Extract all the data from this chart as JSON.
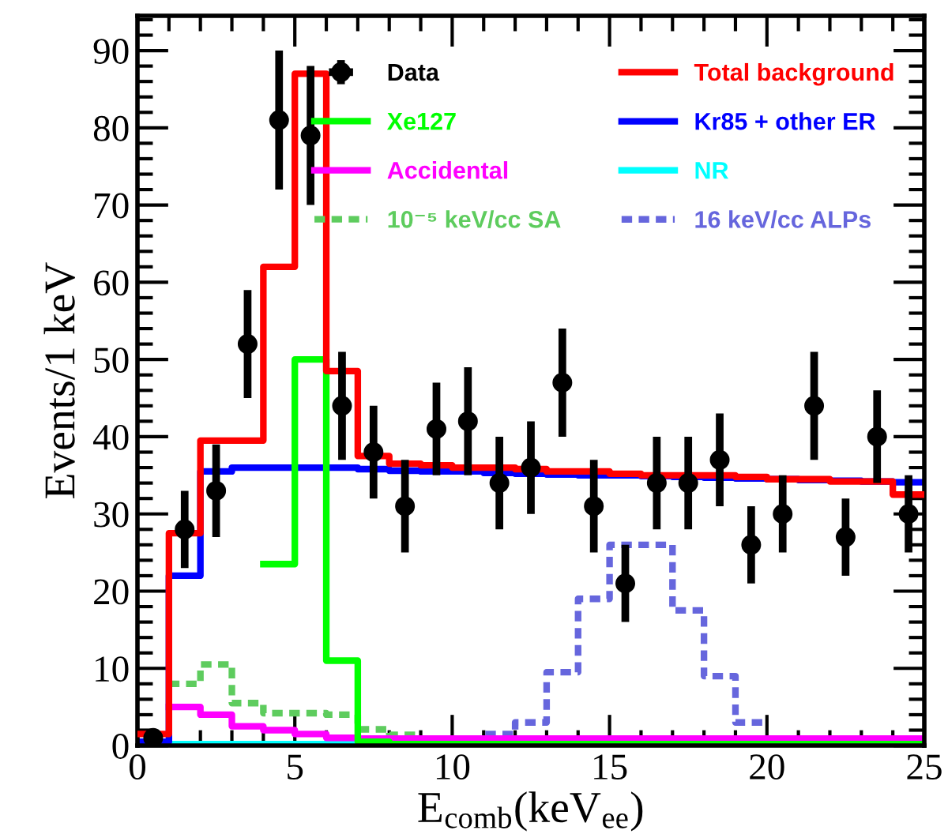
{
  "chart_data": {
    "type": "step",
    "xlabel": "E$_{comb}$(keV$_{ee}$)",
    "ylabel": "Events/1 keV",
    "xlim": [
      0,
      25
    ],
    "ylim": [
      0,
      94.5
    ],
    "xticks": [
      0,
      5,
      10,
      15,
      20,
      25
    ],
    "yticks": [
      0,
      10,
      20,
      30,
      40,
      50,
      60,
      70,
      80,
      90
    ],
    "grid": false,
    "legend": "top right",
    "series": [
      {
        "name": "Data",
        "type": "scatter",
        "color": "#000000",
        "marker": "circle",
        "x": [
          0.5,
          1.5,
          2.5,
          3.5,
          4.5,
          5.5,
          6.5,
          7.5,
          8.5,
          9.5,
          10.5,
          11.5,
          12.5,
          13.5,
          14.5,
          15.5,
          16.5,
          17.5,
          18.5,
          19.5,
          20.5,
          21.5,
          22.5,
          23.5,
          24.5
        ],
        "values": [
          1,
          28,
          33,
          52,
          81,
          79,
          44,
          38,
          31,
          41,
          42,
          34,
          36,
          47,
          31,
          21,
          34,
          34,
          37,
          26,
          30,
          44,
          27,
          40,
          30
        ],
        "errors": [
          1,
          5,
          6,
          7,
          9,
          9,
          7,
          6,
          6,
          6,
          7,
          6,
          6,
          7,
          6,
          5,
          6,
          6,
          6,
          5,
          5,
          7,
          5,
          6,
          5
        ],
        "xerrors": [
          0.25,
          0.25,
          0.25,
          0.25,
          0.25,
          0.25,
          0.25,
          0.25,
          0.25,
          0.25,
          0.25,
          0.25,
          0.25,
          0.25,
          0.25,
          0.25,
          0.25,
          0.25,
          0.25,
          0.25,
          0.25,
          0.25,
          0.25,
          0.25,
          0.25
        ]
      },
      {
        "name": "Total background",
        "color": "#ff0000",
        "line_style": "solid",
        "x": [
          0,
          1,
          2,
          3,
          4,
          5,
          6,
          7,
          8,
          9,
          10,
          11,
          12,
          13,
          14,
          15,
          16,
          17,
          18,
          19,
          20,
          21,
          22,
          23,
          24,
          25
        ],
        "values": [
          1.5,
          27.5,
          39.5,
          39.5,
          62,
          87,
          48.5,
          37.5,
          36.5,
          36.3,
          36,
          36,
          35.8,
          35.5,
          35.5,
          35.2,
          35,
          35,
          35,
          34.8,
          34.5,
          34.5,
          34.2,
          34.2,
          32.5,
          32.5
        ]
      },
      {
        "name": "Xe127",
        "color": "#00ff00",
        "line_style": "solid",
        "x": [
          4,
          5,
          6,
          7,
          8,
          9,
          10,
          11,
          12,
          13,
          14,
          15,
          16,
          17,
          18,
          19,
          20,
          21,
          22,
          23,
          24,
          25
        ],
        "values": [
          23.5,
          50,
          11,
          0.5,
          0.2,
          0.2,
          0.2,
          0.2,
          0.2,
          0.2,
          0.2,
          0.2,
          0.2,
          0.2,
          0.2,
          0.2,
          0.2,
          0.2,
          0.2,
          0.2,
          0.2,
          0.2
        ]
      },
      {
        "name": "Kr85 + other ER",
        "color": "#0000ff",
        "line_style": "solid",
        "x": [
          0,
          1,
          2,
          3,
          4,
          5,
          6,
          7,
          8,
          9,
          10,
          11,
          12,
          13,
          14,
          15,
          16,
          17,
          18,
          19,
          20,
          21,
          22,
          23,
          24,
          25
        ],
        "values": [
          0.5,
          22,
          35.5,
          36,
          36,
          36,
          36,
          35.8,
          35.6,
          35.5,
          35.5,
          35.3,
          35.2,
          35.1,
          35,
          35,
          34.9,
          34.8,
          34.7,
          34.6,
          34.5,
          34.4,
          34.3,
          34.2,
          34.1,
          34.1
        ]
      },
      {
        "name": "Accidental",
        "color": "#ff00ff",
        "line_style": "solid",
        "x": [
          1,
          2,
          3,
          4,
          5,
          6,
          7,
          8,
          9,
          10,
          11,
          12,
          13,
          14,
          15,
          16,
          17,
          18,
          19,
          20,
          21,
          22,
          23,
          24,
          25
        ],
        "values": [
          5,
          4,
          2.5,
          2,
          1.5,
          1,
          0.9,
          0.9,
          0.9,
          0.9,
          0.9,
          0.9,
          0.9,
          0.9,
          0.9,
          0.9,
          0.9,
          0.9,
          0.9,
          0.9,
          0.9,
          0.9,
          0.9,
          0.9,
          0.9
        ]
      },
      {
        "name": "NR",
        "color": "#00ffff",
        "line_style": "solid",
        "x": [
          0,
          1,
          2,
          3,
          4,
          5,
          6,
          7
        ],
        "values": [
          0.2,
          0.2,
          0.2,
          0.2,
          0.2,
          0.2,
          0.2,
          0.2
        ]
      },
      {
        "name": "10⁻⁵ keV/cc SA",
        "color": "#5ecc5e",
        "line_style": "dashed",
        "x": [
          1,
          2,
          3,
          4,
          5,
          6,
          7,
          8,
          9
        ],
        "values": [
          8,
          10.5,
          5.5,
          4.2,
          4.2,
          4,
          2.1,
          1.4,
          1.4
        ]
      },
      {
        "name": "16 keV/cc ALPs",
        "color": "#6666dd",
        "line_style": "dashed",
        "x": [
          0,
          1,
          2,
          3,
          4,
          5,
          6,
          7,
          8,
          9,
          10,
          11,
          12,
          13,
          14,
          15,
          16,
          17,
          18,
          19,
          20
        ],
        "values": [
          0,
          0,
          0,
          0,
          0,
          0,
          0,
          0,
          0,
          0,
          0.3,
          1.5,
          3,
          9.5,
          19,
          26,
          26,
          17.5,
          9,
          3,
          3
        ]
      }
    ]
  }
}
